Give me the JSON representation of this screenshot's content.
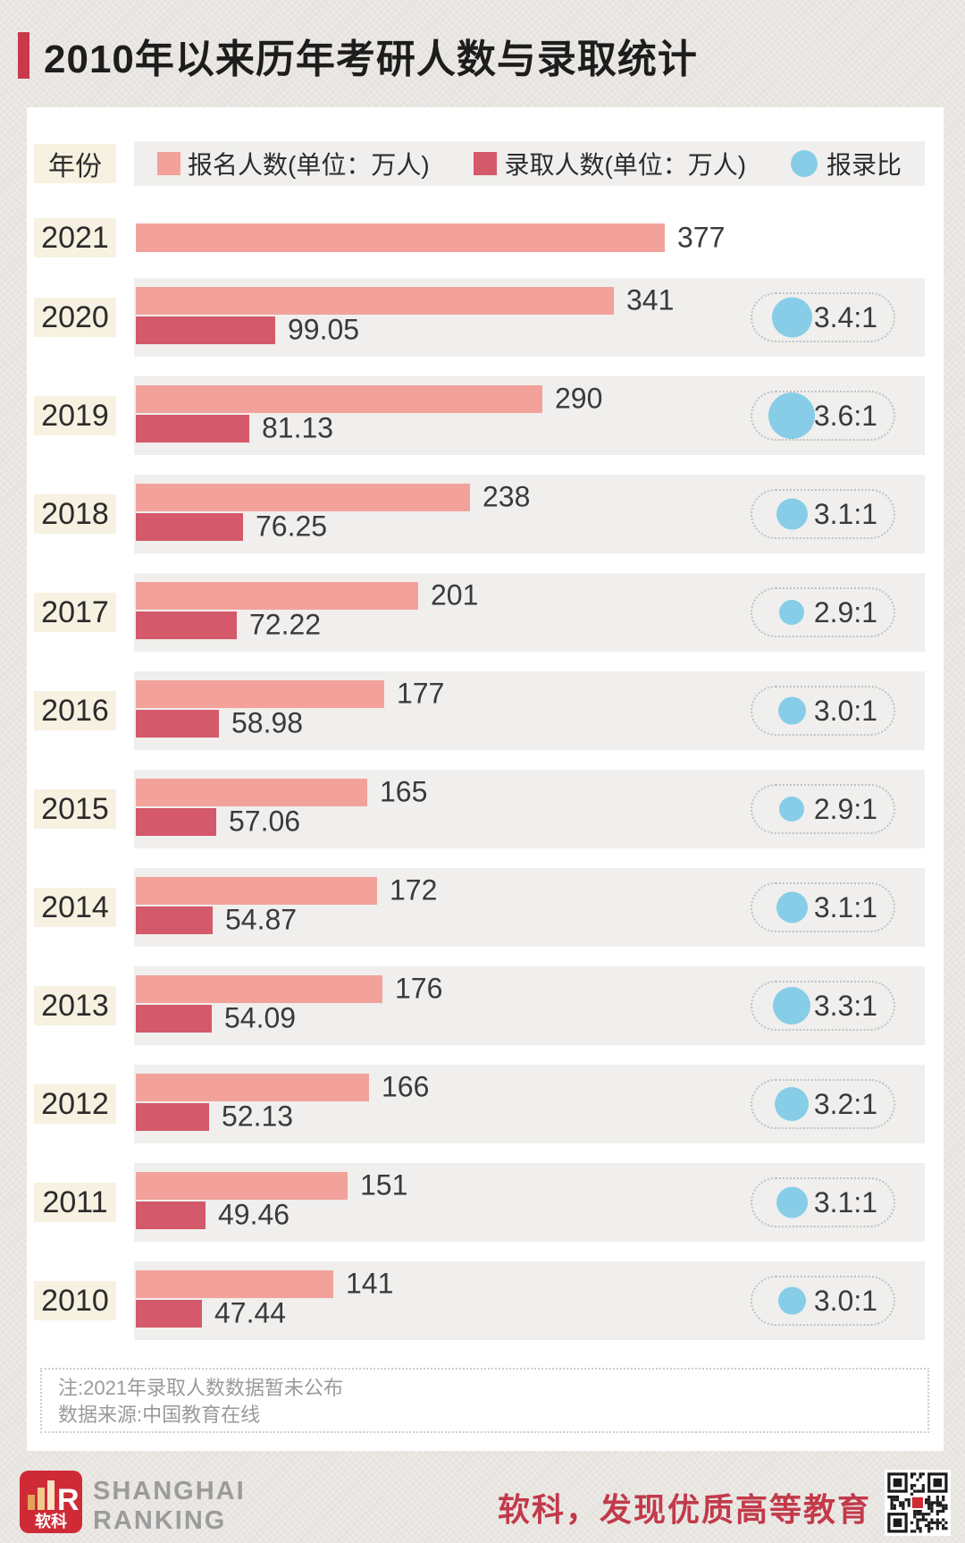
{
  "page": {
    "title": "2010年以来历年考研人数与录取统计",
    "note_line1": "注:2021年录取人数数据暂未公布",
    "note_line2": "数据来源:中国教育在线"
  },
  "legend": {
    "year_header": "年份",
    "applicants_label": "报名人数(单位：万人)",
    "admitted_label": "录取人数(单位：万人)",
    "ratio_label": "报录比"
  },
  "footer": {
    "logo_cn": "软科",
    "brand_line1": "SHANGHAI",
    "brand_line2": "RANKING",
    "slogan": "软科，发现优质高等教育"
  },
  "colors": {
    "applicants_bar": "#f2a29b",
    "admitted_bar": "#d4596a",
    "ratio_circle": "#87cde8",
    "accent_red": "#c8394a",
    "year_chip_bg": "#f7f1e1",
    "row_strip_bg": "#f0efed"
  },
  "chart_data": {
    "type": "bar",
    "orientation": "horizontal",
    "title": "2010年以来历年考研人数与录取统计",
    "categories": [
      "2021",
      "2020",
      "2019",
      "2018",
      "2017",
      "2016",
      "2015",
      "2014",
      "2013",
      "2012",
      "2011",
      "2010"
    ],
    "series": [
      {
        "name": "报名人数(单位：万人)",
        "values": [
          377,
          341,
          290,
          238,
          201,
          177,
          165,
          172,
          176,
          166,
          151,
          141
        ]
      },
      {
        "name": "录取人数(单位：万人)",
        "values": [
          null,
          99.05,
          81.13,
          76.25,
          72.22,
          58.98,
          57.06,
          54.87,
          54.09,
          52.13,
          49.46,
          47.44
        ]
      },
      {
        "name": "报录比",
        "values": [
          null,
          "3.4:1",
          "3.6:1",
          "3.1:1",
          "2.9:1",
          "3.0:1",
          "2.9:1",
          "3.1:1",
          "3.3:1",
          "3.2:1",
          "3.1:1",
          "3.0:1"
        ]
      }
    ],
    "x_max": 377,
    "unit": "万人",
    "legend_position": "top",
    "grid": false
  }
}
